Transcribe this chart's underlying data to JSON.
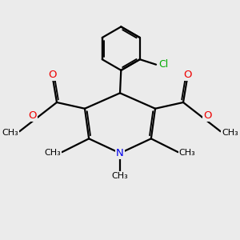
{
  "bg_color": "#ebebeb",
  "atom_colors": {
    "C": "#000000",
    "N": "#0000ee",
    "O": "#ee0000",
    "Cl": "#00aa00"
  },
  "bond_color": "#000000",
  "bond_width": 1.6,
  "fig_width": 3.0,
  "fig_height": 3.0,
  "dpi": 100,
  "xlim": [
    0,
    10
  ],
  "ylim": [
    0,
    10
  ]
}
